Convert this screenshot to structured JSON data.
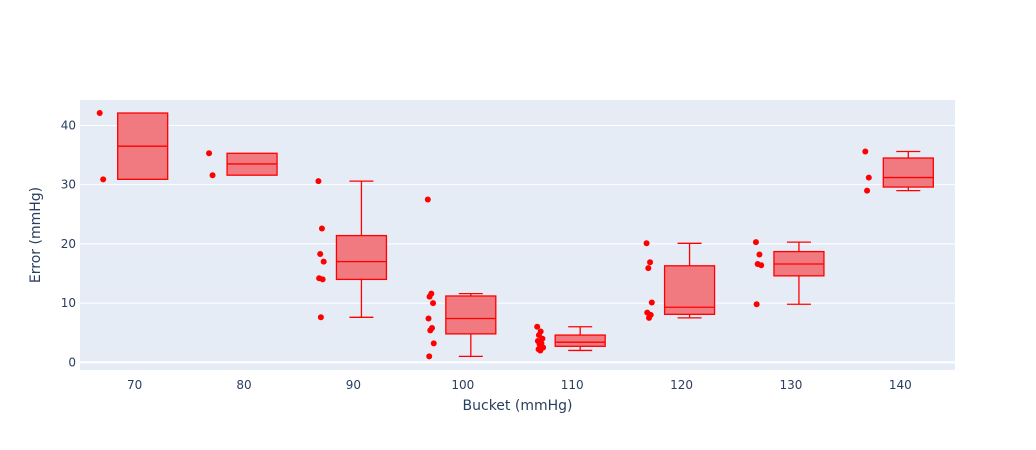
{
  "chart_data": {
    "type": "box",
    "xlabel": "Bucket (mmHg)",
    "ylabel": "Error (mmHg)",
    "xlim": [
      65,
      145
    ],
    "ylim": [
      -1.3,
      44.3
    ],
    "x_ticks": [
      70,
      80,
      90,
      100,
      110,
      120,
      130,
      140
    ],
    "y_ticks": [
      0,
      10,
      20,
      30,
      40
    ],
    "grid": true,
    "legend": "none",
    "colors": {
      "box_fill": "#f07a80",
      "box_line": "#ff0000",
      "point": "#ff0000",
      "plot_bg": "#e5ecf6",
      "grid": "#ffffff",
      "text": "#2a3f5f"
    },
    "boxes": [
      {
        "x": 70,
        "min": 30.9,
        "q1": 30.9,
        "median": 36.5,
        "q3": 42.1,
        "max": 42.1,
        "points": [
          42.1,
          30.9
        ]
      },
      {
        "x": 80,
        "min": 31.6,
        "q1": 31.6,
        "median": 33.5,
        "q3": 35.3,
        "max": 35.3,
        "points": [
          35.3,
          31.6
        ]
      },
      {
        "x": 90,
        "min": 7.6,
        "q1": 14.0,
        "median": 17.0,
        "q3": 21.4,
        "max": 30.6,
        "points": [
          30.6,
          22.6,
          18.3,
          17.0,
          14.2,
          14.0,
          7.6
        ]
      },
      {
        "x": 100,
        "min": 1.0,
        "q1": 4.8,
        "median": 7.4,
        "q3": 11.2,
        "max": 11.6,
        "points": [
          27.5,
          11.6,
          11.1,
          10.0,
          7.4,
          5.8,
          5.4,
          3.2,
          1.0
        ]
      },
      {
        "x": 110,
        "min": 2.0,
        "q1": 2.7,
        "median": 3.4,
        "q3": 4.6,
        "max": 6.0,
        "points": [
          6.0,
          5.2,
          4.6,
          4.0,
          3.6,
          3.2,
          3.0,
          2.5,
          2.2,
          2.0
        ]
      },
      {
        "x": 120,
        "min": 7.5,
        "q1": 8.1,
        "median": 9.3,
        "q3": 16.3,
        "max": 20.1,
        "points": [
          20.1,
          16.9,
          15.9,
          10.1,
          8.4,
          8.0,
          7.5
        ]
      },
      {
        "x": 130,
        "min": 9.8,
        "q1": 14.6,
        "median": 16.6,
        "q3": 18.7,
        "max": 20.3,
        "points": [
          20.3,
          18.2,
          16.6,
          16.4,
          9.8
        ]
      },
      {
        "x": 140,
        "min": 29.0,
        "q1": 29.6,
        "median": 31.2,
        "q3": 34.5,
        "max": 35.6,
        "points": [
          35.6,
          31.2,
          29.0
        ]
      }
    ]
  }
}
